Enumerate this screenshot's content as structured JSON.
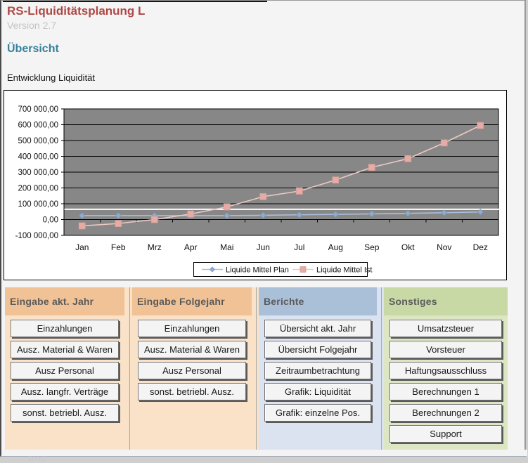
{
  "header": {
    "title": "RS-Liquiditätsplanung L",
    "version": "Version 2.7",
    "section": "Übersicht",
    "chart_label": "Entwicklung Liquidität",
    "watermark": "blog"
  },
  "colors": {
    "title": "#AE4846",
    "version": "#C4C4C4",
    "section": "#39809B",
    "page_bg": "#F4F4F4",
    "plot_bg": "#878787",
    "panel_title": "#5A5A5A"
  },
  "chart_data": {
    "type": "line",
    "title": "Entwicklung Liquidität",
    "categories": [
      "Jan",
      "Feb",
      "Mrz",
      "Apr",
      "Mai",
      "Jun",
      "Jul",
      "Aug",
      "Sep",
      "Okt",
      "Nov",
      "Dez"
    ],
    "series": [
      {
        "name": "Liquide Mittel Plan",
        "marker": "diamond",
        "line_color": "#A9C0DB",
        "marker_color": "#8FACCE",
        "marker_edge": "#7E9CC2",
        "values": [
          25000,
          25000,
          25000,
          25000,
          25000,
          27000,
          30000,
          33000,
          36000,
          39000,
          43000,
          48000
        ]
      },
      {
        "name": "Liquide Mittel Ist",
        "marker": "square",
        "line_color": "#ECC9C5",
        "marker_color": "#E5ACA5",
        "marker_edge": "#D69B95",
        "values": [
          -40000,
          -25000,
          0,
          35000,
          80000,
          145000,
          180000,
          250000,
          330000,
          385000,
          485000,
          595000
        ]
      }
    ],
    "ylim": [
      -100000,
      700000
    ],
    "ytick_step": 100000,
    "ytick_labels": [
      "700 000,00",
      "600 000,00",
      "500 000,00",
      "400 000,00",
      "300 000,00",
      "200 000,00",
      "100 000,00",
      "0,00",
      "-100 000,00"
    ],
    "annotation_line": {
      "value": 65000,
      "color": "#FFFFFF"
    },
    "plot_bg": "#878787",
    "grid": true,
    "legend_position": "bottom"
  },
  "panels": [
    {
      "title": "Eingabe akt. Jahr",
      "header_color": "#F1C296",
      "body_color": "#F9E2C8",
      "buttons": [
        "Einzahlungen",
        "Ausz. Material & Waren",
        "Ausz Personal",
        "Ausz. langfr. Verträge",
        "sonst. betriebl. Ausz."
      ]
    },
    {
      "title": "Eingabe Folgejahr",
      "header_color": "#F1C296",
      "body_color": "#F9E2C8",
      "buttons": [
        "Einzahlungen",
        "Ausz. Material & Waren",
        "Ausz Personal",
        "sonst. betriebl. Ausz."
      ]
    },
    {
      "title": "Berichte",
      "header_color": "#AABFD8",
      "body_color": "#DAE3EF",
      "buttons": [
        "Übersicht akt. Jahr",
        "Übersicht Folgejahr",
        "Zeitraumbetrachtung",
        "Grafik: Liquidität",
        "Grafik: einzelne Pos."
      ]
    },
    {
      "title": "Sonstiges",
      "header_color": "#C9D9A5",
      "body_color": "#DCE6C2",
      "buttons": [
        "Umsatzsteuer",
        "Vorsteuer",
        "Haftungsausschluss",
        "Berechnungen 1",
        "Berechnungen 2",
        "Support"
      ]
    }
  ]
}
